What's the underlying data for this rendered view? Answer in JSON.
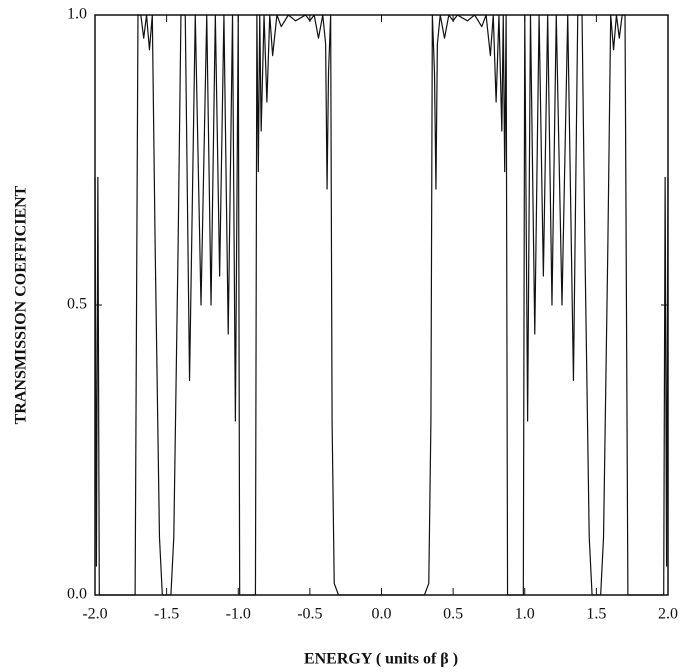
{
  "chart_data": {
    "type": "line",
    "x_label": "ENERGY ( units of β )",
    "y_label": "TRANSMISSION COEFFICIENT",
    "x": [
      -2.0,
      -1.99,
      -1.98,
      -1.97,
      -1.72,
      -1.7,
      -1.68,
      -1.66,
      -1.64,
      -1.62,
      -1.6,
      -1.58,
      -1.55,
      -1.53,
      -1.47,
      -1.45,
      -1.42,
      -1.4,
      -1.37,
      -1.34,
      -1.3,
      -1.26,
      -1.22,
      -1.19,
      -1.16,
      -1.13,
      -1.1,
      -1.07,
      -1.04,
      -1.02,
      -1.0,
      -0.99,
      -0.88,
      -0.87,
      -0.86,
      -0.85,
      -0.84,
      -0.82,
      -0.8,
      -0.78,
      -0.76,
      -0.73,
      -0.7,
      -0.65,
      -0.6,
      -0.53,
      -0.5,
      -0.47,
      -0.44,
      -0.41,
      -0.39,
      -0.38,
      -0.37,
      -0.355,
      -0.345,
      -0.33,
      -0.3,
      0.0,
      0.3,
      0.33,
      0.345,
      0.355,
      0.37,
      0.38,
      0.39,
      0.41,
      0.44,
      0.47,
      0.5,
      0.53,
      0.6,
      0.65,
      0.7,
      0.73,
      0.76,
      0.78,
      0.8,
      0.82,
      0.84,
      0.85,
      0.86,
      0.87,
      0.88,
      0.99,
      1.0,
      1.02,
      1.04,
      1.07,
      1.1,
      1.13,
      1.16,
      1.19,
      1.22,
      1.26,
      1.3,
      1.34,
      1.37,
      1.4,
      1.42,
      1.45,
      1.47,
      1.53,
      1.55,
      1.58,
      1.6,
      1.62,
      1.64,
      1.66,
      1.68,
      1.7,
      1.72,
      1.97,
      1.98,
      1.99,
      2.0
    ],
    "series": [
      {
        "color": "#111111",
        "values": [
          0.72,
          0.05,
          0.72,
          0,
          0,
          1,
          1,
          0.96,
          1,
          0.94,
          1,
          0.6,
          0.1,
          0,
          0,
          0.1,
          0.6,
          1,
          1,
          0.37,
          1,
          0.5,
          1,
          0.5,
          1,
          0.55,
          1,
          0.45,
          1,
          0.3,
          1,
          0,
          0,
          1,
          0.73,
          1,
          0.8,
          1,
          0.85,
          1,
          0.93,
          1,
          0.98,
          1,
          0.99,
          1,
          0.99,
          1,
          0.96,
          1,
          0.95,
          0.7,
          0.9,
          1,
          0.3,
          0.02,
          0,
          0,
          0,
          0.02,
          0.3,
          1,
          0.9,
          0.7,
          0.95,
          1,
          0.96,
          1,
          0.99,
          1,
          0.99,
          1,
          0.98,
          1,
          0.93,
          1,
          0.85,
          1,
          0.8,
          1,
          0.73,
          1,
          0,
          0,
          1,
          0.3,
          1,
          0.45,
          1,
          0.55,
          1,
          0.5,
          1,
          0.5,
          1,
          0.37,
          1,
          1,
          0.6,
          0.1,
          0,
          0,
          0.1,
          0.6,
          1,
          0.94,
          1,
          0.96,
          1,
          1,
          0,
          0,
          0.72,
          0.05,
          0.72
        ]
      }
    ],
    "xlim": [
      -2,
      2
    ],
    "ylim": [
      0,
      1
    ],
    "xticks": [
      {
        "value": -2,
        "label": "-2.0"
      },
      {
        "value": -1.5,
        "label": "-1.5"
      },
      {
        "value": -1,
        "label": "-1.0"
      },
      {
        "value": -0.5,
        "label": "-0.5"
      },
      {
        "value": 0,
        "label": "0.0"
      },
      {
        "value": 0.5,
        "label": "0.5"
      },
      {
        "value": 1,
        "label": "1.0"
      },
      {
        "value": 1.5,
        "label": "1.5"
      },
      {
        "value": 2,
        "label": "2.0"
      }
    ],
    "yticks": [
      {
        "value": 0,
        "label": "0.0"
      },
      0.5,
      {
        "value": 1,
        "label": "1.0"
      }
    ],
    "grid": false
  }
}
